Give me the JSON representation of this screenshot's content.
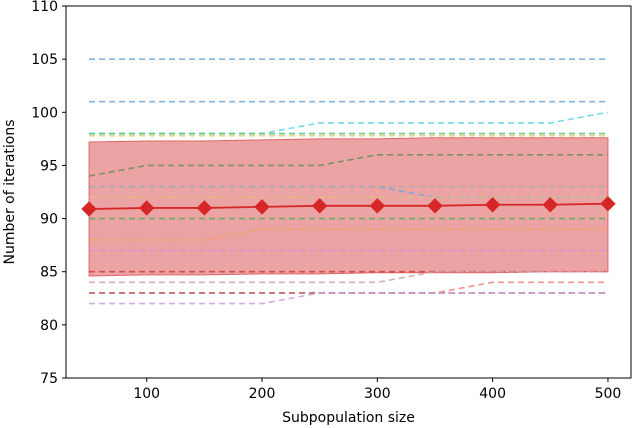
{
  "chart_data": {
    "type": "line",
    "title": "",
    "xlabel": "Subpopulation size",
    "ylabel": "Number of iterations",
    "xlim": [
      30,
      520
    ],
    "ylim": [
      75,
      110
    ],
    "xticks": [
      100,
      200,
      300,
      400,
      500
    ],
    "yticks": [
      75,
      80,
      85,
      90,
      95,
      100,
      105,
      110
    ],
    "grid": false,
    "legend": "none",
    "x": [
      50,
      100,
      150,
      200,
      250,
      300,
      350,
      400,
      450,
      500
    ],
    "mean_series": {
      "color": "#d62728",
      "marker": "diamond",
      "values": [
        90.9,
        91.0,
        91.0,
        91.1,
        91.2,
        91.2,
        91.2,
        91.3,
        91.3,
        91.4
      ]
    },
    "band": {
      "color": "#e06666",
      "upper": [
        97.2,
        97.3,
        97.3,
        97.4,
        97.5,
        97.5,
        97.6,
        97.6,
        97.6,
        97.6
      ],
      "lower": [
        84.6,
        84.7,
        84.7,
        84.8,
        84.8,
        84.9,
        84.9,
        84.9,
        85.0,
        85.0
      ]
    },
    "dashed_series": [
      {
        "color": "#6fa8dc",
        "values": [
          105,
          105,
          105,
          105,
          105,
          105,
          105,
          105,
          105,
          105
        ]
      },
      {
        "color": "#6fa8dc",
        "values": [
          101,
          101,
          101,
          101,
          101,
          101,
          101,
          101,
          101,
          101
        ]
      },
      {
        "color": "#5fd3e0",
        "values": [
          98,
          98,
          98,
          98,
          99,
          99,
          99,
          99,
          99,
          100
        ]
      },
      {
        "color": "#4cc47a",
        "values": [
          98,
          98,
          98,
          98,
          98,
          98,
          98,
          98,
          98,
          98
        ]
      },
      {
        "color": "#e0d070",
        "values": [
          97.8,
          97.8,
          97.8,
          97.8,
          97.8,
          97.8,
          97.8,
          97.8,
          97.8,
          97.8
        ]
      },
      {
        "color": "#6b8e5a",
        "values": [
          94,
          95,
          95,
          95,
          95,
          96,
          96,
          96,
          96,
          96
        ]
      },
      {
        "color": "#6fa8dc",
        "values": [
          93,
          93,
          93,
          93,
          93,
          93,
          92,
          92,
          92,
          92
        ]
      },
      {
        "color": "#aaaaaa",
        "values": [
          93,
          93,
          93,
          93,
          93,
          93,
          93,
          93,
          93,
          93
        ]
      },
      {
        "color": "#e0c080",
        "values": [
          92,
          92,
          92,
          92,
          92,
          92,
          92,
          92,
          92,
          92
        ]
      },
      {
        "color": "#4caf50",
        "values": [
          90,
          90,
          90,
          90,
          90,
          90,
          90,
          90,
          90,
          90
        ]
      },
      {
        "color": "#f4a060",
        "values": [
          88,
          88,
          88,
          89,
          89,
          89,
          89,
          89,
          89,
          89
        ]
      },
      {
        "color": "#e08ad8",
        "values": [
          87,
          87,
          87,
          87,
          87,
          87,
          87,
          87,
          87,
          87
        ]
      },
      {
        "color": "#c94040",
        "values": [
          85,
          85,
          85,
          85,
          85,
          85,
          85,
          85,
          85,
          85
        ]
      },
      {
        "color": "#d4a0a0",
        "values": [
          84,
          84,
          84,
          84,
          84,
          84,
          85,
          85,
          85,
          85
        ]
      },
      {
        "color": "#f08080",
        "values": [
          83,
          83,
          83,
          83,
          83,
          83,
          83,
          84,
          84,
          84
        ]
      },
      {
        "color": "#b06060",
        "values": [
          83,
          83,
          83,
          83,
          83,
          83,
          83,
          83,
          83,
          83
        ]
      },
      {
        "color": "#c8a0e0",
        "values": [
          82,
          82,
          82,
          82,
          83,
          83,
          83,
          83,
          83,
          83
        ]
      }
    ]
  }
}
